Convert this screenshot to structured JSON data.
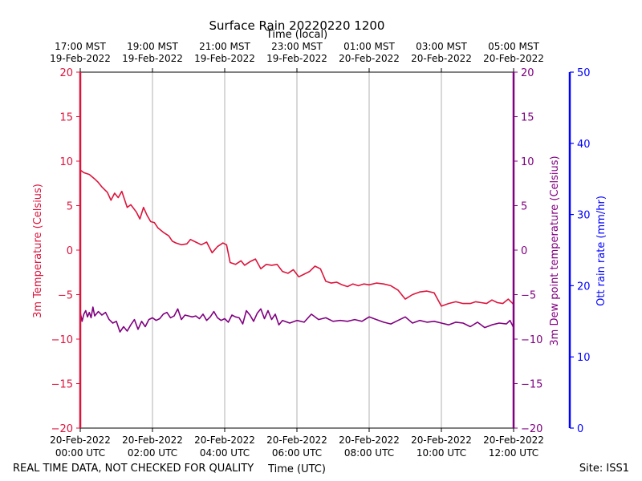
{
  "chart_data": {
    "type": "line",
    "title": "Surface Rain 20220220 1200",
    "top_axis_label": "Time (local)",
    "xlabel": "Time (UTC)",
    "footer_left": "REAL TIME DATA, NOT CHECKED FOR QUALITY",
    "footer_right": "Site: ISS1",
    "x_range_hours": [
      0,
      12
    ],
    "bottom_ticks": [
      {
        "h": 0,
        "l1": "20-Feb-2022",
        "l2": "00:00 UTC"
      },
      {
        "h": 2,
        "l1": "20-Feb-2022",
        "l2": "02:00 UTC"
      },
      {
        "h": 4,
        "l1": "20-Feb-2022",
        "l2": "04:00 UTC"
      },
      {
        "h": 6,
        "l1": "20-Feb-2022",
        "l2": "06:00 UTC"
      },
      {
        "h": 8,
        "l1": "20-Feb-2022",
        "l2": "08:00 UTC"
      },
      {
        "h": 10,
        "l1": "20-Feb-2022",
        "l2": "10:00 UTC"
      },
      {
        "h": 12,
        "l1": "20-Feb-2022",
        "l2": "12:00 UTC"
      }
    ],
    "top_ticks": [
      {
        "h": 0,
        "l1": "17:00 MST",
        "l2": "19-Feb-2022"
      },
      {
        "h": 2,
        "l1": "19:00 MST",
        "l2": "19-Feb-2022"
      },
      {
        "h": 4,
        "l1": "21:00 MST",
        "l2": "19-Feb-2022"
      },
      {
        "h": 6,
        "l1": "23:00 MST",
        "l2": "19-Feb-2022"
      },
      {
        "h": 8,
        "l1": "01:00 MST",
        "l2": "20-Feb-2022"
      },
      {
        "h": 10,
        "l1": "03:00 MST",
        "l2": "20-Feb-2022"
      },
      {
        "h": 12,
        "l1": "05:00 MST",
        "l2": "20-Feb-2022"
      }
    ],
    "left_axis": {
      "label": "3m Temperature (Celsius)",
      "ylim": [
        -20,
        20
      ],
      "ticks": [
        20,
        15,
        10,
        5,
        0,
        -5,
        -10,
        -15,
        -20
      ],
      "color": "#dc143c"
    },
    "right_axis": {
      "label": "3m Dew point temperature (Celsius)",
      "ylim": [
        -20,
        20
      ],
      "ticks": [
        20,
        15,
        10,
        5,
        0,
        -5,
        -10,
        -15,
        -20
      ],
      "color": "#800080"
    },
    "rain_axis": {
      "label": "Ott rain rate (mm/hr)",
      "ylim": [
        0,
        50
      ],
      "ticks": [
        50,
        40,
        30,
        20,
        10,
        0
      ],
      "color": "#0000ff"
    },
    "series": [
      {
        "name": "3m Temperature",
        "axis": "left",
        "color": "#dc143c",
        "x": [
          0,
          0.1,
          0.25,
          0.4,
          0.5,
          0.6,
          0.75,
          0.85,
          0.95,
          1.05,
          1.15,
          1.3,
          1.4,
          1.55,
          1.65,
          1.75,
          1.85,
          1.95,
          2.05,
          2.15,
          2.3,
          2.45,
          2.55,
          2.65,
          2.8,
          2.95,
          3.05,
          3.2,
          3.35,
          3.5,
          3.65,
          3.8,
          3.95,
          4.05,
          4.15,
          4.3,
          4.45,
          4.55,
          4.7,
          4.85,
          5.0,
          5.15,
          5.3,
          5.45,
          5.6,
          5.75,
          5.9,
          6.05,
          6.2,
          6.35,
          6.5,
          6.65,
          6.8,
          6.95,
          7.1,
          7.25,
          7.4,
          7.55,
          7.7,
          7.85,
          8.0,
          8.2,
          8.4,
          8.6,
          8.8,
          9.0,
          9.2,
          9.4,
          9.6,
          9.8,
          10.0,
          10.2,
          10.4,
          10.6,
          10.8,
          10.95,
          11.1,
          11.25,
          11.4,
          11.55,
          11.7,
          11.85,
          12.0
        ],
        "values": [
          9.0,
          8.7,
          8.5,
          8.0,
          7.6,
          7.1,
          6.5,
          5.6,
          6.4,
          5.9,
          6.6,
          4.8,
          5.1,
          4.3,
          3.5,
          4.8,
          3.9,
          3.2,
          3.1,
          2.5,
          2.0,
          1.6,
          1.0,
          0.8,
          0.6,
          0.7,
          1.2,
          0.9,
          0.6,
          0.9,
          -0.3,
          0.4,
          0.8,
          0.6,
          -1.4,
          -1.6,
          -1.2,
          -1.7,
          -1.3,
          -1.0,
          -2.1,
          -1.6,
          -1.7,
          -1.6,
          -2.4,
          -2.6,
          -2.2,
          -3.0,
          -2.7,
          -2.4,
          -1.8,
          -2.1,
          -3.5,
          -3.7,
          -3.6,
          -3.9,
          -4.1,
          -3.8,
          -4.0,
          -3.8,
          -3.9,
          -3.7,
          -3.8,
          -4.0,
          -4.5,
          -5.5,
          -5.0,
          -4.7,
          -4.6,
          -4.8,
          -6.3,
          -6.0,
          -5.8,
          -6.0,
          -6.0,
          -5.8,
          -5.9,
          -6.0,
          -5.6,
          -5.9,
          -6.0,
          -5.5,
          -6.1
        ]
      },
      {
        "name": "3m Dew point temperature",
        "axis": "right",
        "color": "#800080",
        "x": [
          0,
          0.05,
          0.1,
          0.15,
          0.2,
          0.25,
          0.3,
          0.35,
          0.4,
          0.5,
          0.6,
          0.7,
          0.8,
          0.9,
          1.0,
          1.1,
          1.2,
          1.3,
          1.4,
          1.5,
          1.6,
          1.7,
          1.8,
          1.9,
          2.0,
          2.1,
          2.2,
          2.3,
          2.4,
          2.5,
          2.6,
          2.7,
          2.8,
          2.9,
          3.0,
          3.1,
          3.2,
          3.3,
          3.4,
          3.5,
          3.6,
          3.7,
          3.8,
          3.9,
          4.0,
          4.1,
          4.2,
          4.3,
          4.4,
          4.5,
          4.6,
          4.7,
          4.8,
          4.9,
          5.0,
          5.1,
          5.2,
          5.3,
          5.4,
          5.5,
          5.6,
          5.8,
          6.0,
          6.2,
          6.4,
          6.6,
          6.8,
          7.0,
          7.2,
          7.4,
          7.6,
          7.8,
          8.0,
          8.2,
          8.4,
          8.6,
          8.8,
          9.0,
          9.2,
          9.4,
          9.6,
          9.8,
          10.0,
          10.2,
          10.4,
          10.6,
          10.8,
          11.0,
          11.2,
          11.4,
          11.6,
          11.8,
          11.9,
          12.0
        ],
        "values": [
          -7.0,
          -8.0,
          -7.2,
          -6.8,
          -7.5,
          -7.0,
          -7.6,
          -6.4,
          -7.4,
          -6.9,
          -7.3,
          -7.0,
          -7.8,
          -8.2,
          -8.0,
          -9.2,
          -8.6,
          -9.1,
          -8.4,
          -7.8,
          -8.9,
          -8.0,
          -8.6,
          -7.8,
          -7.6,
          -7.9,
          -7.7,
          -7.2,
          -7.0,
          -7.6,
          -7.4,
          -6.6,
          -7.8,
          -7.3,
          -7.4,
          -7.5,
          -7.4,
          -7.7,
          -7.2,
          -7.9,
          -7.5,
          -6.9,
          -7.6,
          -7.9,
          -7.7,
          -8.1,
          -7.3,
          -7.5,
          -7.6,
          -8.3,
          -6.8,
          -7.3,
          -8.0,
          -7.1,
          -6.6,
          -7.7,
          -6.8,
          -7.8,
          -7.2,
          -8.4,
          -7.9,
          -8.2,
          -7.9,
          -8.1,
          -7.2,
          -7.8,
          -7.6,
          -8.0,
          -7.9,
          -8.0,
          -7.8,
          -8.0,
          -7.5,
          -7.8,
          -8.1,
          -8.3,
          -7.9,
          -7.5,
          -8.2,
          -7.9,
          -8.1,
          -8.0,
          -8.2,
          -8.4,
          -8.1,
          -8.2,
          -8.6,
          -8.1,
          -8.7,
          -8.4,
          -8.2,
          -8.3,
          -7.9,
          -8.7
        ]
      }
    ]
  }
}
